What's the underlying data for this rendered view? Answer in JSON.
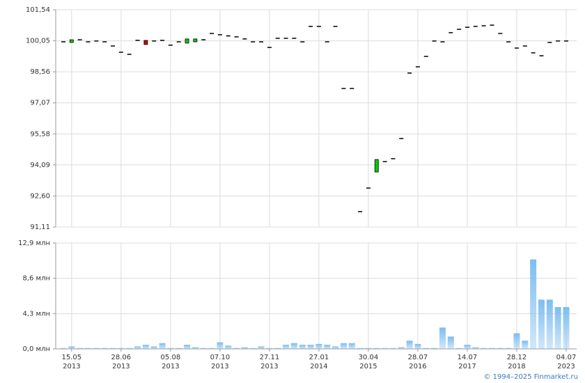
{
  "chart_data": [
    {
      "type": "candlestick",
      "categories": [
        null,
        [
          "15.05",
          "2013"
        ],
        null,
        null,
        null,
        null,
        null,
        [
          "28.06",
          "2013"
        ],
        null,
        null,
        null,
        null,
        null,
        [
          "05.08",
          "2013"
        ],
        null,
        null,
        null,
        null,
        null,
        [
          "07.10",
          "2013"
        ],
        null,
        null,
        null,
        null,
        null,
        [
          "27.11",
          "2013"
        ],
        null,
        null,
        null,
        null,
        null,
        [
          "27.01",
          "2014"
        ],
        null,
        null,
        null,
        null,
        null,
        [
          "30.04",
          "2015"
        ],
        null,
        null,
        null,
        null,
        null,
        [
          "28.07",
          "2016"
        ],
        null,
        null,
        null,
        null,
        null,
        [
          "14.07",
          "2017"
        ],
        null,
        null,
        null,
        null,
        null,
        [
          "28.12",
          "2018"
        ],
        null,
        null,
        null,
        null,
        null,
        [
          "04.07",
          "2023"
        ]
      ],
      "series": {
        "open": [
          100.0,
          99.97,
          100.1,
          100.0,
          100.04,
          100.0,
          99.8,
          99.5,
          99.4,
          100.07,
          100.07,
          100.04,
          100.07,
          99.84,
          100.0,
          99.94,
          100.0,
          100.1,
          100.4,
          100.34,
          100.27,
          100.24,
          100.14,
          100.0,
          100.0,
          99.73,
          100.17,
          100.17,
          100.17,
          100.0,
          100.74,
          100.74,
          100.0,
          100.74,
          97.76,
          97.76,
          91.85,
          92.98,
          93.75,
          94.25,
          94.39,
          95.36,
          98.5,
          98.8,
          99.3,
          100.04,
          100.0,
          100.44,
          100.6,
          100.7,
          100.74,
          100.77,
          100.8,
          100.4,
          100.0,
          99.7,
          99.8,
          99.47,
          99.33,
          99.97,
          100.04,
          100.04
        ],
        "close": [
          100.0,
          100.1,
          100.1,
          100.0,
          100.04,
          100.0,
          99.8,
          99.5,
          99.4,
          100.07,
          99.87,
          100.04,
          100.07,
          99.84,
          100.0,
          100.14,
          100.14,
          100.1,
          100.4,
          100.34,
          100.3,
          100.24,
          100.14,
          100.0,
          100.0,
          99.73,
          100.17,
          100.17,
          100.17,
          100.0,
          100.74,
          100.74,
          100.0,
          100.74,
          97.76,
          97.76,
          91.85,
          92.98,
          94.35,
          94.25,
          94.39,
          95.36,
          98.5,
          98.8,
          99.3,
          100.04,
          100.0,
          100.44,
          100.6,
          100.7,
          100.74,
          100.77,
          100.8,
          100.4,
          100.0,
          99.7,
          99.8,
          99.47,
          99.33,
          99.97,
          100.04,
          100.04
        ]
      },
      "up_color": "#00cc00",
      "down_color": "#cc0000",
      "flat_color": "#000000",
      "ylim": [
        91.11,
        101.54
      ],
      "yticks": [
        {
          "value": 91.11,
          "label": "91,11"
        },
        {
          "value": 92.6,
          "label": "92,60"
        },
        {
          "value": 94.09,
          "label": "94,09"
        },
        {
          "value": 95.58,
          "label": "95,58"
        },
        {
          "value": 97.07,
          "label": "97,07"
        },
        {
          "value": 98.56,
          "label": "98,56"
        },
        {
          "value": 100.05,
          "label": "100,05"
        },
        {
          "value": 101.54,
          "label": "101,54"
        }
      ],
      "grid": true
    },
    {
      "type": "bar",
      "values": [
        0.1,
        0.3,
        0.1,
        0.1,
        0.1,
        0.1,
        0.1,
        0.1,
        0.1,
        0.3,
        0.5,
        0.3,
        0.7,
        0.1,
        0.1,
        0.5,
        0.2,
        0.1,
        0.1,
        0.8,
        0.4,
        0.1,
        0.2,
        0.1,
        0.3,
        0.1,
        0.1,
        0.5,
        0.7,
        0.5,
        0.5,
        0.6,
        0.5,
        0.3,
        0.7,
        0.7,
        0.1,
        0.1,
        0.1,
        0.1,
        0.1,
        0.2,
        1.0,
        0.6,
        0.1,
        0.1,
        2.6,
        1.5,
        0.1,
        0.5,
        0.2,
        0.1,
        0.1,
        0.1,
        0.1,
        1.9,
        1.0,
        10.9,
        6.0,
        6.0,
        5.1,
        5.1
      ],
      "color": "#7dbdf0",
      "ylim": [
        0,
        12.9
      ],
      "yticks": [
        {
          "value": 0,
          "label": "0,0 млн"
        },
        {
          "value": 4.3,
          "label": "4,3 млн"
        },
        {
          "value": 8.6,
          "label": "8,6 млн"
        },
        {
          "value": 12.9,
          "label": "12,9 млн"
        }
      ],
      "grid": true
    }
  ],
  "footer": "© 1994–2025 Finmarket.ru"
}
